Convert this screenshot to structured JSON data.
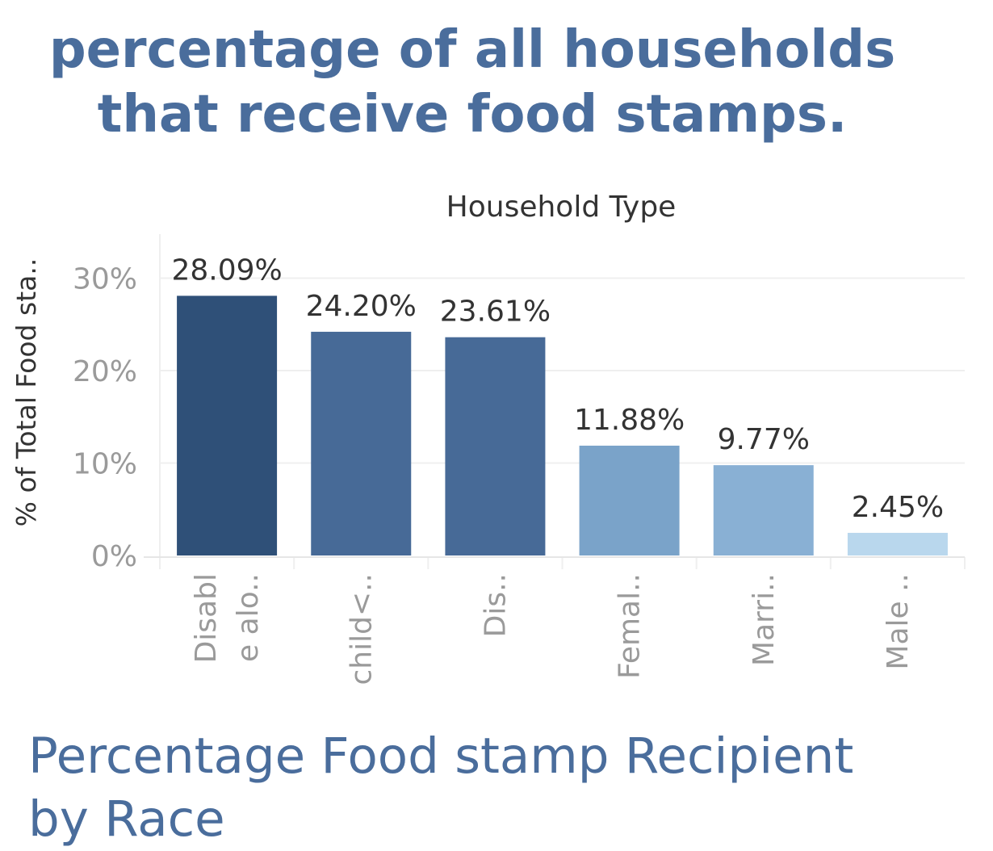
{
  "title_lines": [
    "percentage of all households",
    "that receive food stamps."
  ],
  "subtitle_lines": [
    "Percentage Food stamp Recipient",
    "by Race"
  ],
  "chart_data": {
    "type": "bar",
    "column_header": "Household Type",
    "ylabel": "% of Total Food sta..",
    "xlabel": "",
    "ylim": [
      0,
      30
    ],
    "y_ticks": [
      {
        "value": 0,
        "label": "0%"
      },
      {
        "value": 10,
        "label": "10%"
      },
      {
        "value": 20,
        "label": "20%"
      },
      {
        "value": 30,
        "label": "30%"
      }
    ],
    "grid": true,
    "categories": [
      "Disable alo..",
      "child<..",
      "Dis..",
      "Femal..",
      "Marri..",
      "Male .."
    ],
    "category_label_lines": [
      [
        "Disabl",
        "e alo.."
      ],
      [
        "child<.."
      ],
      [
        "Dis.."
      ],
      [
        "Femal.."
      ],
      [
        "Marri.."
      ],
      [
        "Male .."
      ]
    ],
    "values": [
      28.09,
      24.2,
      23.61,
      11.88,
      9.77,
      2.45
    ],
    "value_labels": [
      "28.09%",
      "24.20%",
      "23.61%",
      "11.88%",
      "9.77%",
      "2.45%"
    ],
    "colors": [
      "#2f5078",
      "#476a97",
      "#476a97",
      "#7aa3c9",
      "#89b0d4",
      "#b9d7ed"
    ]
  }
}
